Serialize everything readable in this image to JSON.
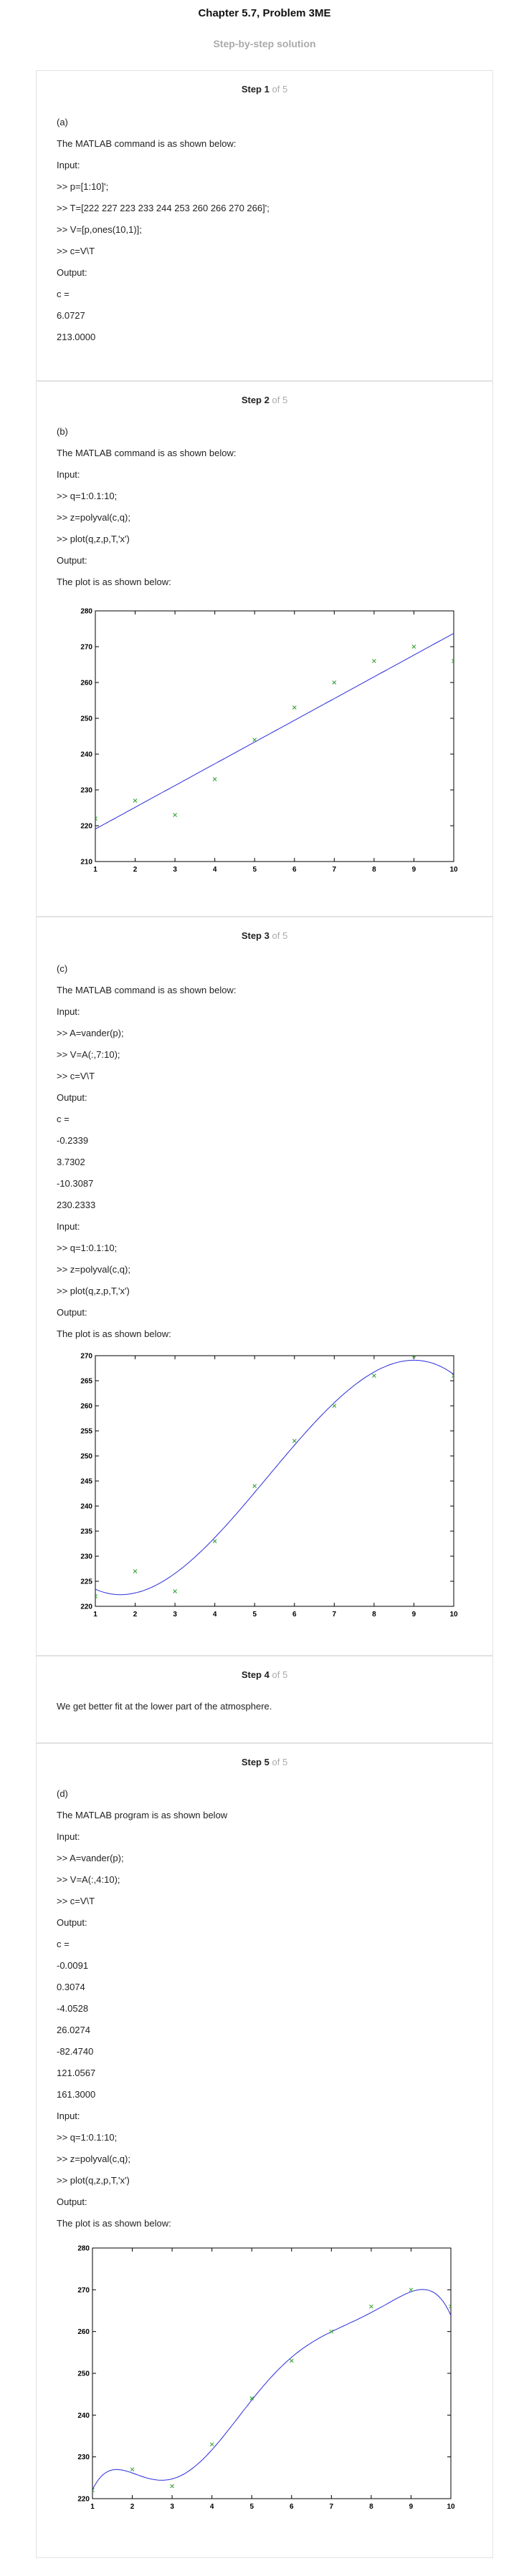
{
  "header": {
    "title": "Chapter 5.7, Problem 3ME",
    "subtitle": "Step-by-step solution"
  },
  "steps": [
    {
      "step_word": "Step",
      "num": "1",
      "of_total": "of 5",
      "lines": [
        "(a)",
        "The MATLAB command is as shown below:",
        "Input:",
        ">> p=[1:10]';",
        ">> T=[222 227 223 233 244 253 260 266 270 266]';",
        ">> V=[p,ones(10,1)];",
        ">> c=V\\T",
        "Output:",
        "c =",
        "6.0727",
        "213.0000"
      ]
    },
    {
      "step_word": "Step",
      "num": "2",
      "of_total": "of 5",
      "lines": [
        "(b)",
        "The MATLAB command is as shown below:",
        "Input:",
        ">> q=1:0.1:10;",
        ">> z=polyval(c,q);",
        ">> plot(q,z,p,T,'x')",
        "Output:",
        "The plot is as shown below:"
      ]
    },
    {
      "step_word": "Step",
      "num": "3",
      "of_total": "of 5",
      "lines": [
        "(c)",
        "The MATLAB command is as shown below:",
        "Input:",
        ">> A=vander(p);",
        ">> V=A(:,7:10);",
        ">> c=V\\T",
        "Output:",
        "c =",
        "-0.2339",
        "3.7302",
        "-10.3087",
        "230.2333",
        "Input:",
        ">> q=1:0.1:10;",
        ">> z=polyval(c,q);",
        ">> plot(q,z,p,T,'x')",
        "Output:",
        "The plot is as shown below:"
      ]
    },
    {
      "step_word": "Step",
      "num": "4",
      "of_total": "of 5",
      "lines": [
        "We get better fit at the lower part of the atmosphere."
      ]
    },
    {
      "step_word": "Step",
      "num": "5",
      "of_total": "of 5",
      "lines": [
        "(d)",
        "The MATLAB program is as shown below",
        "Input:",
        ">> A=vander(p);",
        ">> V=A(:,4:10);",
        ">> c=V\\T",
        "Output:",
        "c =",
        "-0.0091",
        "0.3074",
        "-4.0528",
        "26.0274",
        "-82.4740",
        "121.0567",
        "161.3000",
        "Input:",
        ">> q=1:0.1:10;",
        ">> z=polyval(c,q);",
        ">> plot(q,z,p,T,'x')",
        "Output:",
        "The plot is as shown below:"
      ]
    }
  ],
  "chart_data": [
    {
      "type": "line",
      "title": "",
      "xlabel": "",
      "ylabel": "",
      "x_ticks": [
        1,
        2,
        3,
        4,
        5,
        6,
        7,
        8,
        9,
        10
      ],
      "y_ticks": [
        210,
        220,
        230,
        240,
        250,
        260,
        270,
        280
      ],
      "xlim": [
        1,
        10
      ],
      "ylim": [
        210,
        280
      ],
      "series": [
        {
          "name": "fit",
          "style": "line",
          "color": "#2b2bdc",
          "coefficients": [
            6.0727,
            213.0
          ]
        },
        {
          "name": "data",
          "style": "x-markers",
          "color": "#2e9e2e",
          "x": [
            1,
            2,
            3,
            4,
            5,
            6,
            7,
            8,
            9,
            10
          ],
          "y": [
            222,
            227,
            223,
            233,
            244,
            253,
            260,
            266,
            270,
            266
          ]
        }
      ]
    },
    {
      "type": "line",
      "title": "",
      "xlabel": "",
      "ylabel": "",
      "x_ticks": [
        1,
        2,
        3,
        4,
        5,
        6,
        7,
        8,
        9,
        10
      ],
      "y_ticks": [
        220,
        225,
        230,
        235,
        240,
        245,
        250,
        255,
        260,
        265,
        270
      ],
      "xlim": [
        1,
        10
      ],
      "ylim": [
        220,
        270
      ],
      "series": [
        {
          "name": "fit",
          "style": "line",
          "color": "#2b2bdc",
          "coefficients": [
            -0.2339,
            3.7302,
            -10.3087,
            230.2333
          ]
        },
        {
          "name": "data",
          "style": "x-markers",
          "color": "#2e9e2e",
          "x": [
            1,
            2,
            3,
            4,
            5,
            6,
            7,
            8,
            9,
            10
          ],
          "y": [
            222,
            227,
            223,
            233,
            244,
            253,
            260,
            266,
            270,
            266
          ]
        }
      ]
    },
    {
      "type": "line",
      "title": "",
      "xlabel": "",
      "ylabel": "",
      "x_ticks": [
        1,
        2,
        3,
        4,
        5,
        6,
        7,
        8,
        9,
        10
      ],
      "y_ticks": [
        220,
        230,
        240,
        250,
        260,
        270,
        280
      ],
      "xlim": [
        1,
        10
      ],
      "ylim": [
        220,
        280
      ],
      "series": [
        {
          "name": "fit",
          "style": "line",
          "color": "#2b2bdc",
          "coefficients": [
            -0.0091,
            0.3074,
            -4.0528,
            26.0274,
            -82.474,
            121.0567,
            161.3
          ]
        },
        {
          "name": "data",
          "style": "x-markers",
          "color": "#2e9e2e",
          "x": [
            1,
            2,
            3,
            4,
            5,
            6,
            7,
            8,
            9,
            10
          ],
          "y": [
            222,
            227,
            223,
            233,
            244,
            253,
            260,
            266,
            270,
            266
          ]
        }
      ]
    }
  ]
}
